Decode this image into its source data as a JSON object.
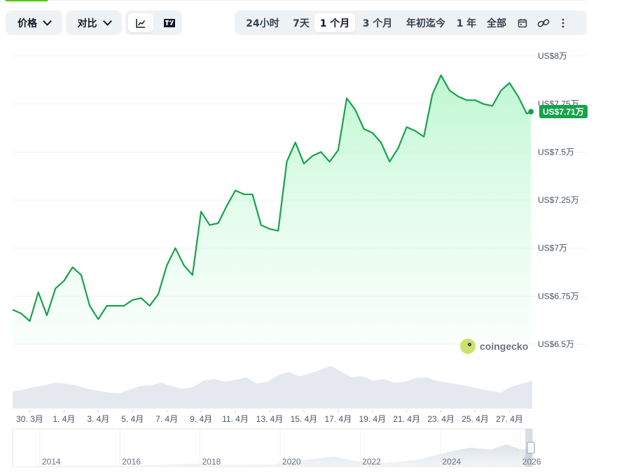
{
  "toolbar": {
    "price_label": "价格",
    "compare_label": "对比",
    "line_icon": "line-chart-icon",
    "tradingview_icon": "tradingview-icon",
    "ranges": [
      "24小时",
      "7天",
      "1 个月",
      "3 个月",
      "年初迄今",
      "1 年",
      "全部"
    ],
    "active_range": "1 个月",
    "calendar_icon": "calendar-icon",
    "link_icon": "link-icon",
    "more_icon": "more-vertical-icon"
  },
  "current_price_badge": "US$7.71万",
  "watermark": "coingecko",
  "colors": {
    "line": "#16a34a",
    "fill": "#bbf7d0",
    "volume": "#e5e9ef",
    "badge": "#16a34a"
  },
  "chart_data": {
    "type": "area",
    "title": "",
    "xlabel": "",
    "ylabel": "",
    "y_unit": "US$万",
    "ylim": [
      6.5,
      8.0
    ],
    "y_ticks": [
      6.5,
      6.75,
      7.0,
      7.25,
      7.5,
      7.75,
      8.0
    ],
    "y_tick_labels": [
      "US$6.5万",
      "US$6.75万",
      "US$7万",
      "US$7.25万",
      "US$7.5万",
      "US$7.75万",
      "US$8万"
    ],
    "x_range": [
      "2026-03-29",
      "2026-04-28"
    ],
    "x_tick_labels": [
      "30. 3月",
      "1. 4月",
      "3. 4月",
      "5. 4月",
      "7. 4月",
      "9. 4月",
      "11. 4月",
      "13. 4月",
      "15. 4月",
      "17. 4月",
      "19. 4月",
      "21. 4月",
      "23. 4月",
      "25. 4月",
      "27. 4月"
    ],
    "x_tick_dates": [
      "2026-03-30",
      "2026-04-01",
      "2026-04-03",
      "2026-04-05",
      "2026-04-07",
      "2026-04-09",
      "2026-04-11",
      "2026-04-13",
      "2026-04-15",
      "2026-04-17",
      "2026-04-19",
      "2026-04-21",
      "2026-04-23",
      "2026-04-25",
      "2026-04-27"
    ],
    "series": [
      {
        "values": [
          {
            "x": "2026-03-29T00",
            "y": 6.68
          },
          {
            "x": "2026-03-29T12",
            "y": 6.66
          },
          {
            "x": "2026-03-30T00",
            "y": 6.62
          },
          {
            "x": "2026-03-30T12",
            "y": 6.77
          },
          {
            "x": "2026-03-31T00",
            "y": 6.65
          },
          {
            "x": "2026-03-31T12",
            "y": 6.79
          },
          {
            "x": "2026-04-01T00",
            "y": 6.83
          },
          {
            "x": "2026-04-01T12",
            "y": 6.9
          },
          {
            "x": "2026-04-02T00",
            "y": 6.86
          },
          {
            "x": "2026-04-02T12",
            "y": 6.7
          },
          {
            "x": "2026-04-03T00",
            "y": 6.63
          },
          {
            "x": "2026-04-03T12",
            "y": 6.7
          },
          {
            "x": "2026-04-04T00",
            "y": 6.7
          },
          {
            "x": "2026-04-04T12",
            "y": 6.7
          },
          {
            "x": "2026-04-05T00",
            "y": 6.73
          },
          {
            "x": "2026-04-05T12",
            "y": 6.74
          },
          {
            "x": "2026-04-06T00",
            "y": 6.7
          },
          {
            "x": "2026-04-06T12",
            "y": 6.76
          },
          {
            "x": "2026-04-07T00",
            "y": 6.91
          },
          {
            "x": "2026-04-07T12",
            "y": 7.0
          },
          {
            "x": "2026-04-08T00",
            "y": 6.91
          },
          {
            "x": "2026-04-08T12",
            "y": 6.86
          },
          {
            "x": "2026-04-09T00",
            "y": 7.19
          },
          {
            "x": "2026-04-09T12",
            "y": 7.12
          },
          {
            "x": "2026-04-10T00",
            "y": 7.13
          },
          {
            "x": "2026-04-10T12",
            "y": 7.22
          },
          {
            "x": "2026-04-11T00",
            "y": 7.3
          },
          {
            "x": "2026-04-11T12",
            "y": 7.28
          },
          {
            "x": "2026-04-12T00",
            "y": 7.28
          },
          {
            "x": "2026-04-12T12",
            "y": 7.12
          },
          {
            "x": "2026-04-13T00",
            "y": 7.1
          },
          {
            "x": "2026-04-13T12",
            "y": 7.09
          },
          {
            "x": "2026-04-14T00",
            "y": 7.45
          },
          {
            "x": "2026-04-14T12",
            "y": 7.55
          },
          {
            "x": "2026-04-15T00",
            "y": 7.44
          },
          {
            "x": "2026-04-15T12",
            "y": 7.48
          },
          {
            "x": "2026-04-16T00",
            "y": 7.5
          },
          {
            "x": "2026-04-16T12",
            "y": 7.45
          },
          {
            "x": "2026-04-17T00",
            "y": 7.51
          },
          {
            "x": "2026-04-17T12",
            "y": 7.78
          },
          {
            "x": "2026-04-18T00",
            "y": 7.72
          },
          {
            "x": "2026-04-18T12",
            "y": 7.62
          },
          {
            "x": "2026-04-19T00",
            "y": 7.6
          },
          {
            "x": "2026-04-19T12",
            "y": 7.55
          },
          {
            "x": "2026-04-20T00",
            "y": 7.45
          },
          {
            "x": "2026-04-20T12",
            "y": 7.52
          },
          {
            "x": "2026-04-21T00",
            "y": 7.63
          },
          {
            "x": "2026-04-21T12",
            "y": 7.61
          },
          {
            "x": "2026-04-22T00",
            "y": 7.58
          },
          {
            "x": "2026-04-22T12",
            "y": 7.8
          },
          {
            "x": "2026-04-23T00",
            "y": 7.9
          },
          {
            "x": "2026-04-23T12",
            "y": 7.82
          },
          {
            "x": "2026-04-24T00",
            "y": 7.79
          },
          {
            "x": "2026-04-24T12",
            "y": 7.77
          },
          {
            "x": "2026-04-25T00",
            "y": 7.77
          },
          {
            "x": "2026-04-25T12",
            "y": 7.75
          },
          {
            "x": "2026-04-26T00",
            "y": 7.74
          },
          {
            "x": "2026-04-26T12",
            "y": 7.82
          },
          {
            "x": "2026-04-27T00",
            "y": 7.86
          },
          {
            "x": "2026-04-27T12",
            "y": 7.79
          },
          {
            "x": "2026-04-28T00",
            "y": 7.7
          },
          {
            "x": "2026-04-28T06",
            "y": 7.71
          }
        ]
      }
    ],
    "volume_series": [
      0.38,
      0.42,
      0.48,
      0.52,
      0.58,
      0.56,
      0.52,
      0.45,
      0.4,
      0.36,
      0.34,
      0.42,
      0.5,
      0.52,
      0.58,
      0.5,
      0.44,
      0.48,
      0.62,
      0.66,
      0.6,
      0.64,
      0.7,
      0.56,
      0.6,
      0.74,
      0.82,
      0.72,
      0.78,
      0.86,
      0.96,
      0.82,
      0.7,
      0.72,
      0.62,
      0.66,
      0.58,
      0.6,
      0.68,
      0.7,
      0.62,
      0.58,
      0.54,
      0.5,
      0.44,
      0.4,
      0.36,
      0.48,
      0.56,
      0.62
    ],
    "navigator": {
      "x_tick_labels": [
        "2014",
        "2016",
        "2018",
        "2020",
        "2022",
        "2024",
        "2026"
      ]
    }
  }
}
